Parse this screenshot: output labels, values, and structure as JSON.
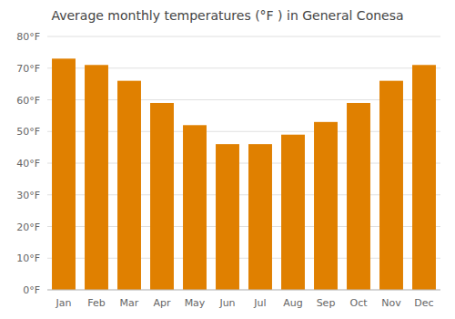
{
  "chart_data": {
    "type": "bar",
    "title": "Average monthly temperatures (°F ) in General Conesa",
    "categories": [
      "Jan",
      "Feb",
      "Mar",
      "Apr",
      "May",
      "Jun",
      "Jul",
      "Aug",
      "Sep",
      "Oct",
      "Nov",
      "Dec"
    ],
    "values": [
      73,
      71,
      66,
      59,
      52,
      46,
      46,
      49,
      53,
      59,
      66,
      71
    ],
    "color": "#E08000",
    "ylim": [
      0,
      80
    ],
    "yticks": [
      {
        "value": 0,
        "label": "0°F"
      },
      {
        "value": 10,
        "label": "10°F"
      },
      {
        "value": 20,
        "label": "20°F"
      },
      {
        "value": 30,
        "label": "30°F"
      },
      {
        "value": 40,
        "label": "40°F"
      },
      {
        "value": 50,
        "label": "50°F"
      },
      {
        "value": 60,
        "label": "60°F"
      },
      {
        "value": 70,
        "label": "70°F"
      },
      {
        "value": 80,
        "label": "80°F"
      }
    ],
    "grid": true
  }
}
